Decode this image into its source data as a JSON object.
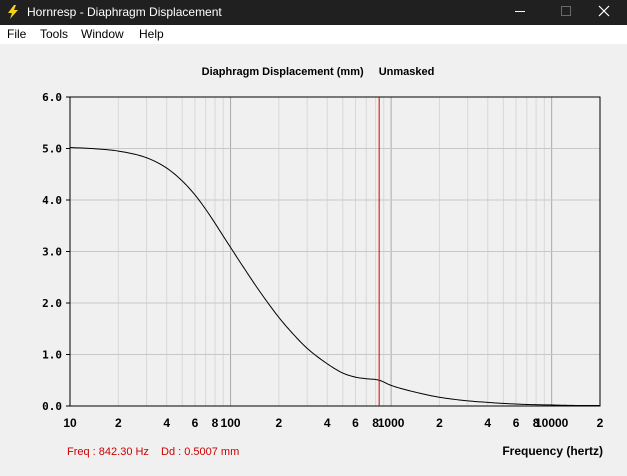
{
  "window": {
    "title": "Hornresp - Diaphragm Displacement",
    "app_icon": "lightning-icon",
    "controls": [
      "minimize-icon",
      "maximize-icon",
      "close-icon"
    ]
  },
  "menu": {
    "items": [
      {
        "label": "File"
      },
      {
        "label": "Tools"
      },
      {
        "label": "Window"
      },
      {
        "label": "Help"
      }
    ]
  },
  "colors": {
    "titlebar_bg": "#202020",
    "curve": "#000000",
    "cursor": "#cc0000",
    "readout": "#cc0000",
    "grid": "#c8c8c8"
  },
  "chart": {
    "title": "Diaphragm Displacement (mm)",
    "mode": "Unmasked",
    "readout_freq": "Freq : 842.30 Hz",
    "readout_value": "Dd : 0.5007 mm"
  },
  "chart_data": {
    "type": "line",
    "title": "Diaphragm Displacement (mm)",
    "xlabel": "Frequency (hertz)",
    "ylabel": "",
    "x_scale": "log",
    "xlim": [
      10,
      20000
    ],
    "ylim": [
      0,
      6
    ],
    "grid": true,
    "y_ticks": [
      "0.0",
      "1.0",
      "2.0",
      "3.0",
      "4.0",
      "5.0",
      "6.0"
    ],
    "x_tick_labels": [
      {
        "value": 10,
        "label": "10"
      },
      {
        "value": 20,
        "label": "2"
      },
      {
        "value": 40,
        "label": "4"
      },
      {
        "value": 60,
        "label": "6"
      },
      {
        "value": 80,
        "label": "8"
      },
      {
        "value": 100,
        "label": "100"
      },
      {
        "value": 200,
        "label": "2"
      },
      {
        "value": 400,
        "label": "4"
      },
      {
        "value": 600,
        "label": "6"
      },
      {
        "value": 800,
        "label": "8"
      },
      {
        "value": 1000,
        "label": "1000"
      },
      {
        "value": 2000,
        "label": "2"
      },
      {
        "value": 4000,
        "label": "4"
      },
      {
        "value": 6000,
        "label": "6"
      },
      {
        "value": 8000,
        "label": "8"
      },
      {
        "value": 10000,
        "label": "10000"
      },
      {
        "value": 20000,
        "label": "2"
      }
    ],
    "series": [
      {
        "x": [
          10,
          15,
          20,
          30,
          40,
          50,
          60,
          70,
          80,
          90,
          100,
          120,
          150,
          200,
          250,
          300,
          400,
          500,
          600,
          700,
          842.3,
          1000,
          1500,
          2000,
          3000,
          4000,
          5000,
          7000,
          10000,
          15000,
          20000
        ],
        "y": [
          5.02,
          4.99,
          4.95,
          4.82,
          4.62,
          4.37,
          4.1,
          3.82,
          3.55,
          3.3,
          3.08,
          2.7,
          2.25,
          1.72,
          1.37,
          1.12,
          0.82,
          0.64,
          0.56,
          0.53,
          0.5007,
          0.4,
          0.25,
          0.17,
          0.1,
          0.07,
          0.05,
          0.03,
          0.02,
          0.01,
          0.01
        ]
      }
    ],
    "cursor": {
      "x": 842.3,
      "y": 0.5007
    }
  }
}
